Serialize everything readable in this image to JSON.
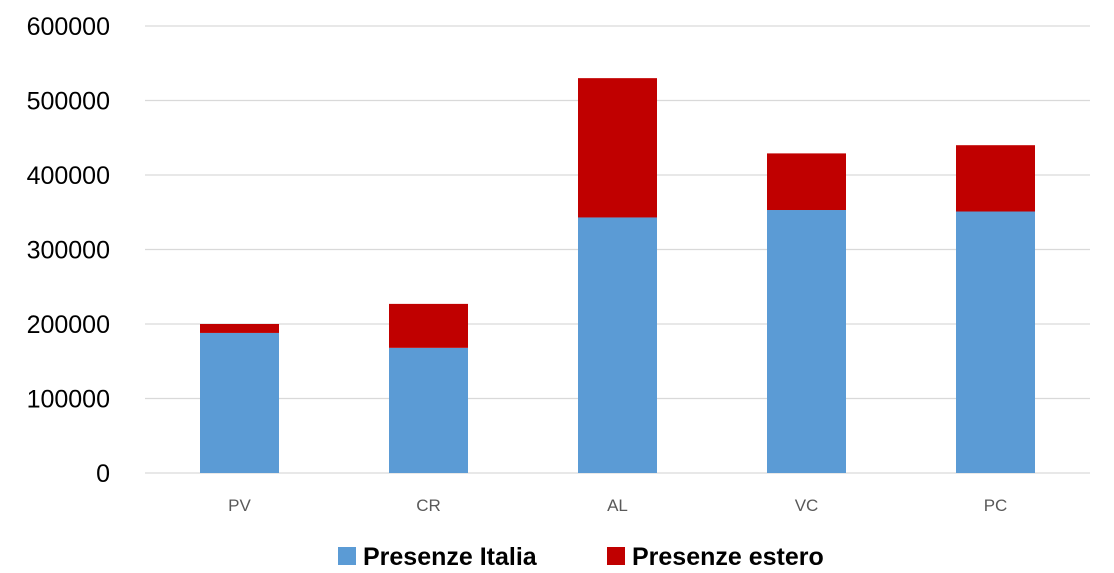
{
  "chart_data": {
    "type": "bar",
    "stacked": true,
    "categories": [
      "PV",
      "CR",
      "AL",
      "VC",
      "PC"
    ],
    "series": [
      {
        "name": "Presenze Italia",
        "color": "#5b9bd5",
        "values": [
          188000,
          168000,
          343000,
          353000,
          351000
        ]
      },
      {
        "name": "Presenze estero",
        "color": "#c00000",
        "values": [
          12000,
          59000,
          187000,
          76000,
          89000
        ]
      }
    ],
    "yticks": [
      "0",
      "100000",
      "200000",
      "300000",
      "400000",
      "500000",
      "600000"
    ],
    "ylim": [
      0,
      600000
    ],
    "grid": true,
    "legend_position": "bottom",
    "title": "",
    "xlabel": "",
    "ylabel": ""
  }
}
